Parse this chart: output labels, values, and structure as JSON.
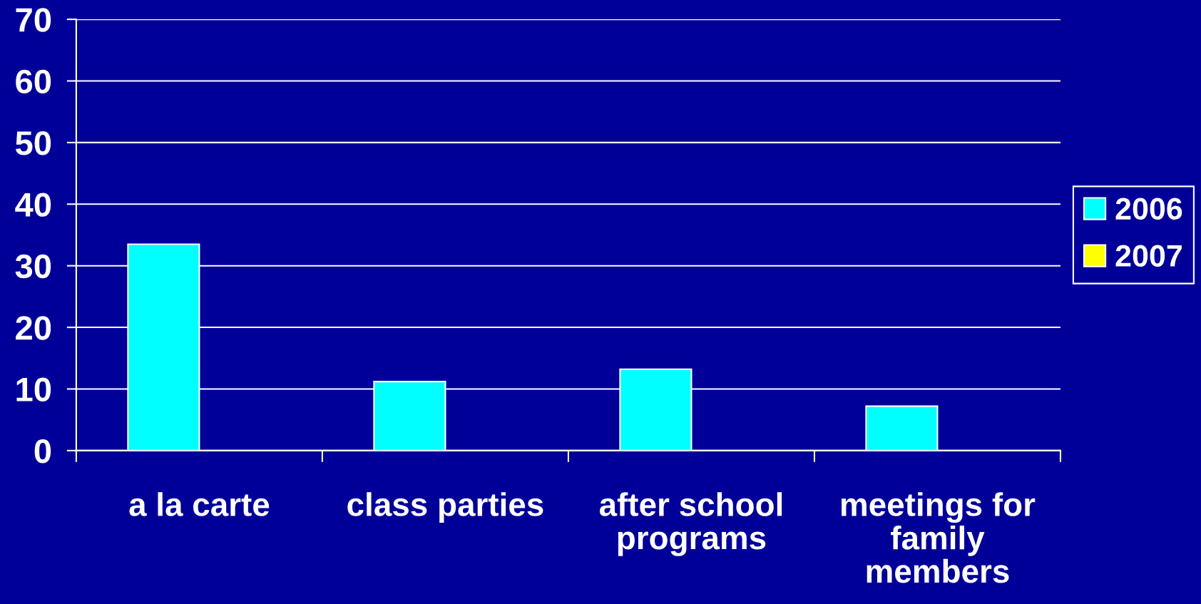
{
  "chart_data": {
    "type": "bar",
    "categories": [
      "a la carte",
      "class parties",
      "after school\nprograms",
      "meetings for\nfamily\nmembers"
    ],
    "series": [
      {
        "name": "2006",
        "color": "#00ffff",
        "values": [
          33.5,
          11.2,
          13.2,
          7.2
        ]
      },
      {
        "name": "2007",
        "color": "#ffff00",
        "values": [
          null,
          null,
          null,
          null
        ]
      }
    ],
    "ylim": [
      0,
      70
    ],
    "yticks": [
      0,
      10,
      20,
      30,
      40,
      50,
      60,
      70
    ],
    "grid": "y",
    "legend": "right"
  }
}
